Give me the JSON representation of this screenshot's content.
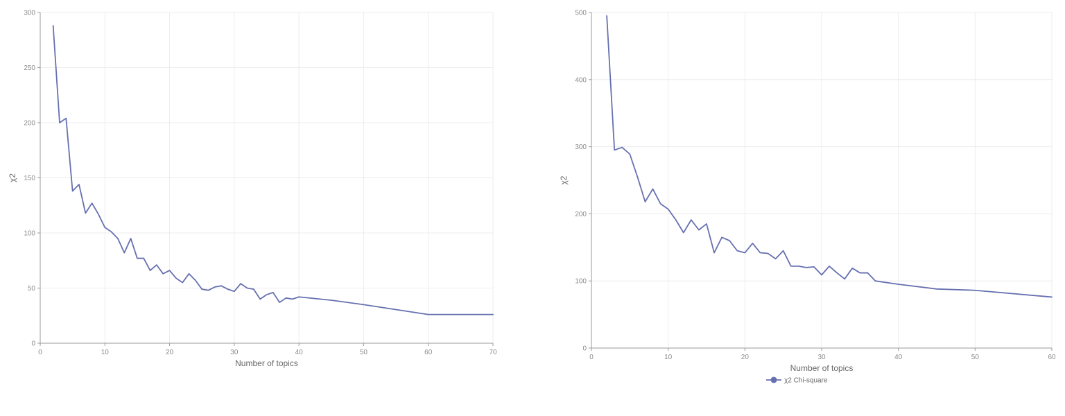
{
  "colors": {
    "series": "#6670b0",
    "grid": "#ececec",
    "axis": "#9a9a9a"
  },
  "chart_data": [
    {
      "type": "line",
      "xlabel": "Number of topics",
      "ylabel": "χ2",
      "xlim": [
        0,
        70
      ],
      "ylim": [
        0,
        300
      ],
      "xticks": [
        0,
        10,
        20,
        30,
        40,
        50,
        60,
        70
      ],
      "yticks": [
        0,
        50,
        100,
        150,
        200,
        250,
        300
      ],
      "grid": true,
      "legend": null,
      "series": [
        {
          "x": [
            2,
            3,
            4,
            5,
            6,
            7,
            8,
            9,
            10,
            11,
            12,
            13,
            14,
            15,
            16,
            17,
            18,
            19,
            20,
            21,
            22,
            23,
            24,
            25,
            26,
            27,
            28,
            29,
            30,
            31,
            32,
            33,
            34,
            35,
            36,
            37,
            38,
            39,
            40,
            45,
            50,
            60,
            70
          ],
          "y": [
            288,
            200,
            204,
            138,
            144,
            118,
            127,
            117,
            105,
            101,
            95,
            82,
            95,
            77,
            77,
            66,
            71,
            63,
            66,
            59,
            55,
            63,
            57,
            49,
            48,
            51,
            52,
            49,
            47,
            54,
            50,
            49,
            40,
            44,
            46,
            37,
            41,
            40,
            42,
            39,
            35,
            26,
            26
          ]
        }
      ]
    },
    {
      "type": "line",
      "xlabel": "Number of topics",
      "ylabel": "χ2",
      "xlim": [
        0,
        60
      ],
      "ylim": [
        0,
        500
      ],
      "xticks": [
        0,
        10,
        20,
        30,
        40,
        50,
        60
      ],
      "yticks": [
        0,
        100,
        200,
        300,
        400,
        500
      ],
      "grid": true,
      "legend": "bottom-center",
      "series": [
        {
          "name": "χ2 Chi-square",
          "x": [
            2,
            3,
            4,
            5,
            6,
            7,
            8,
            9,
            10,
            11,
            12,
            13,
            14,
            15,
            16,
            17,
            18,
            19,
            20,
            21,
            22,
            23,
            24,
            25,
            26,
            27,
            28,
            29,
            30,
            31,
            32,
            33,
            34,
            35,
            36,
            37,
            40,
            45,
            50,
            60
          ],
          "y": [
            495,
            295,
            299,
            289,
            255,
            218,
            237,
            215,
            207,
            191,
            172,
            191,
            176,
            185,
            142,
            165,
            160,
            145,
            142,
            156,
            142,
            141,
            133,
            145,
            122,
            122,
            120,
            121,
            109,
            122,
            112,
            103,
            119,
            112,
            112,
            100,
            95,
            88,
            86,
            76
          ]
        }
      ]
    }
  ]
}
